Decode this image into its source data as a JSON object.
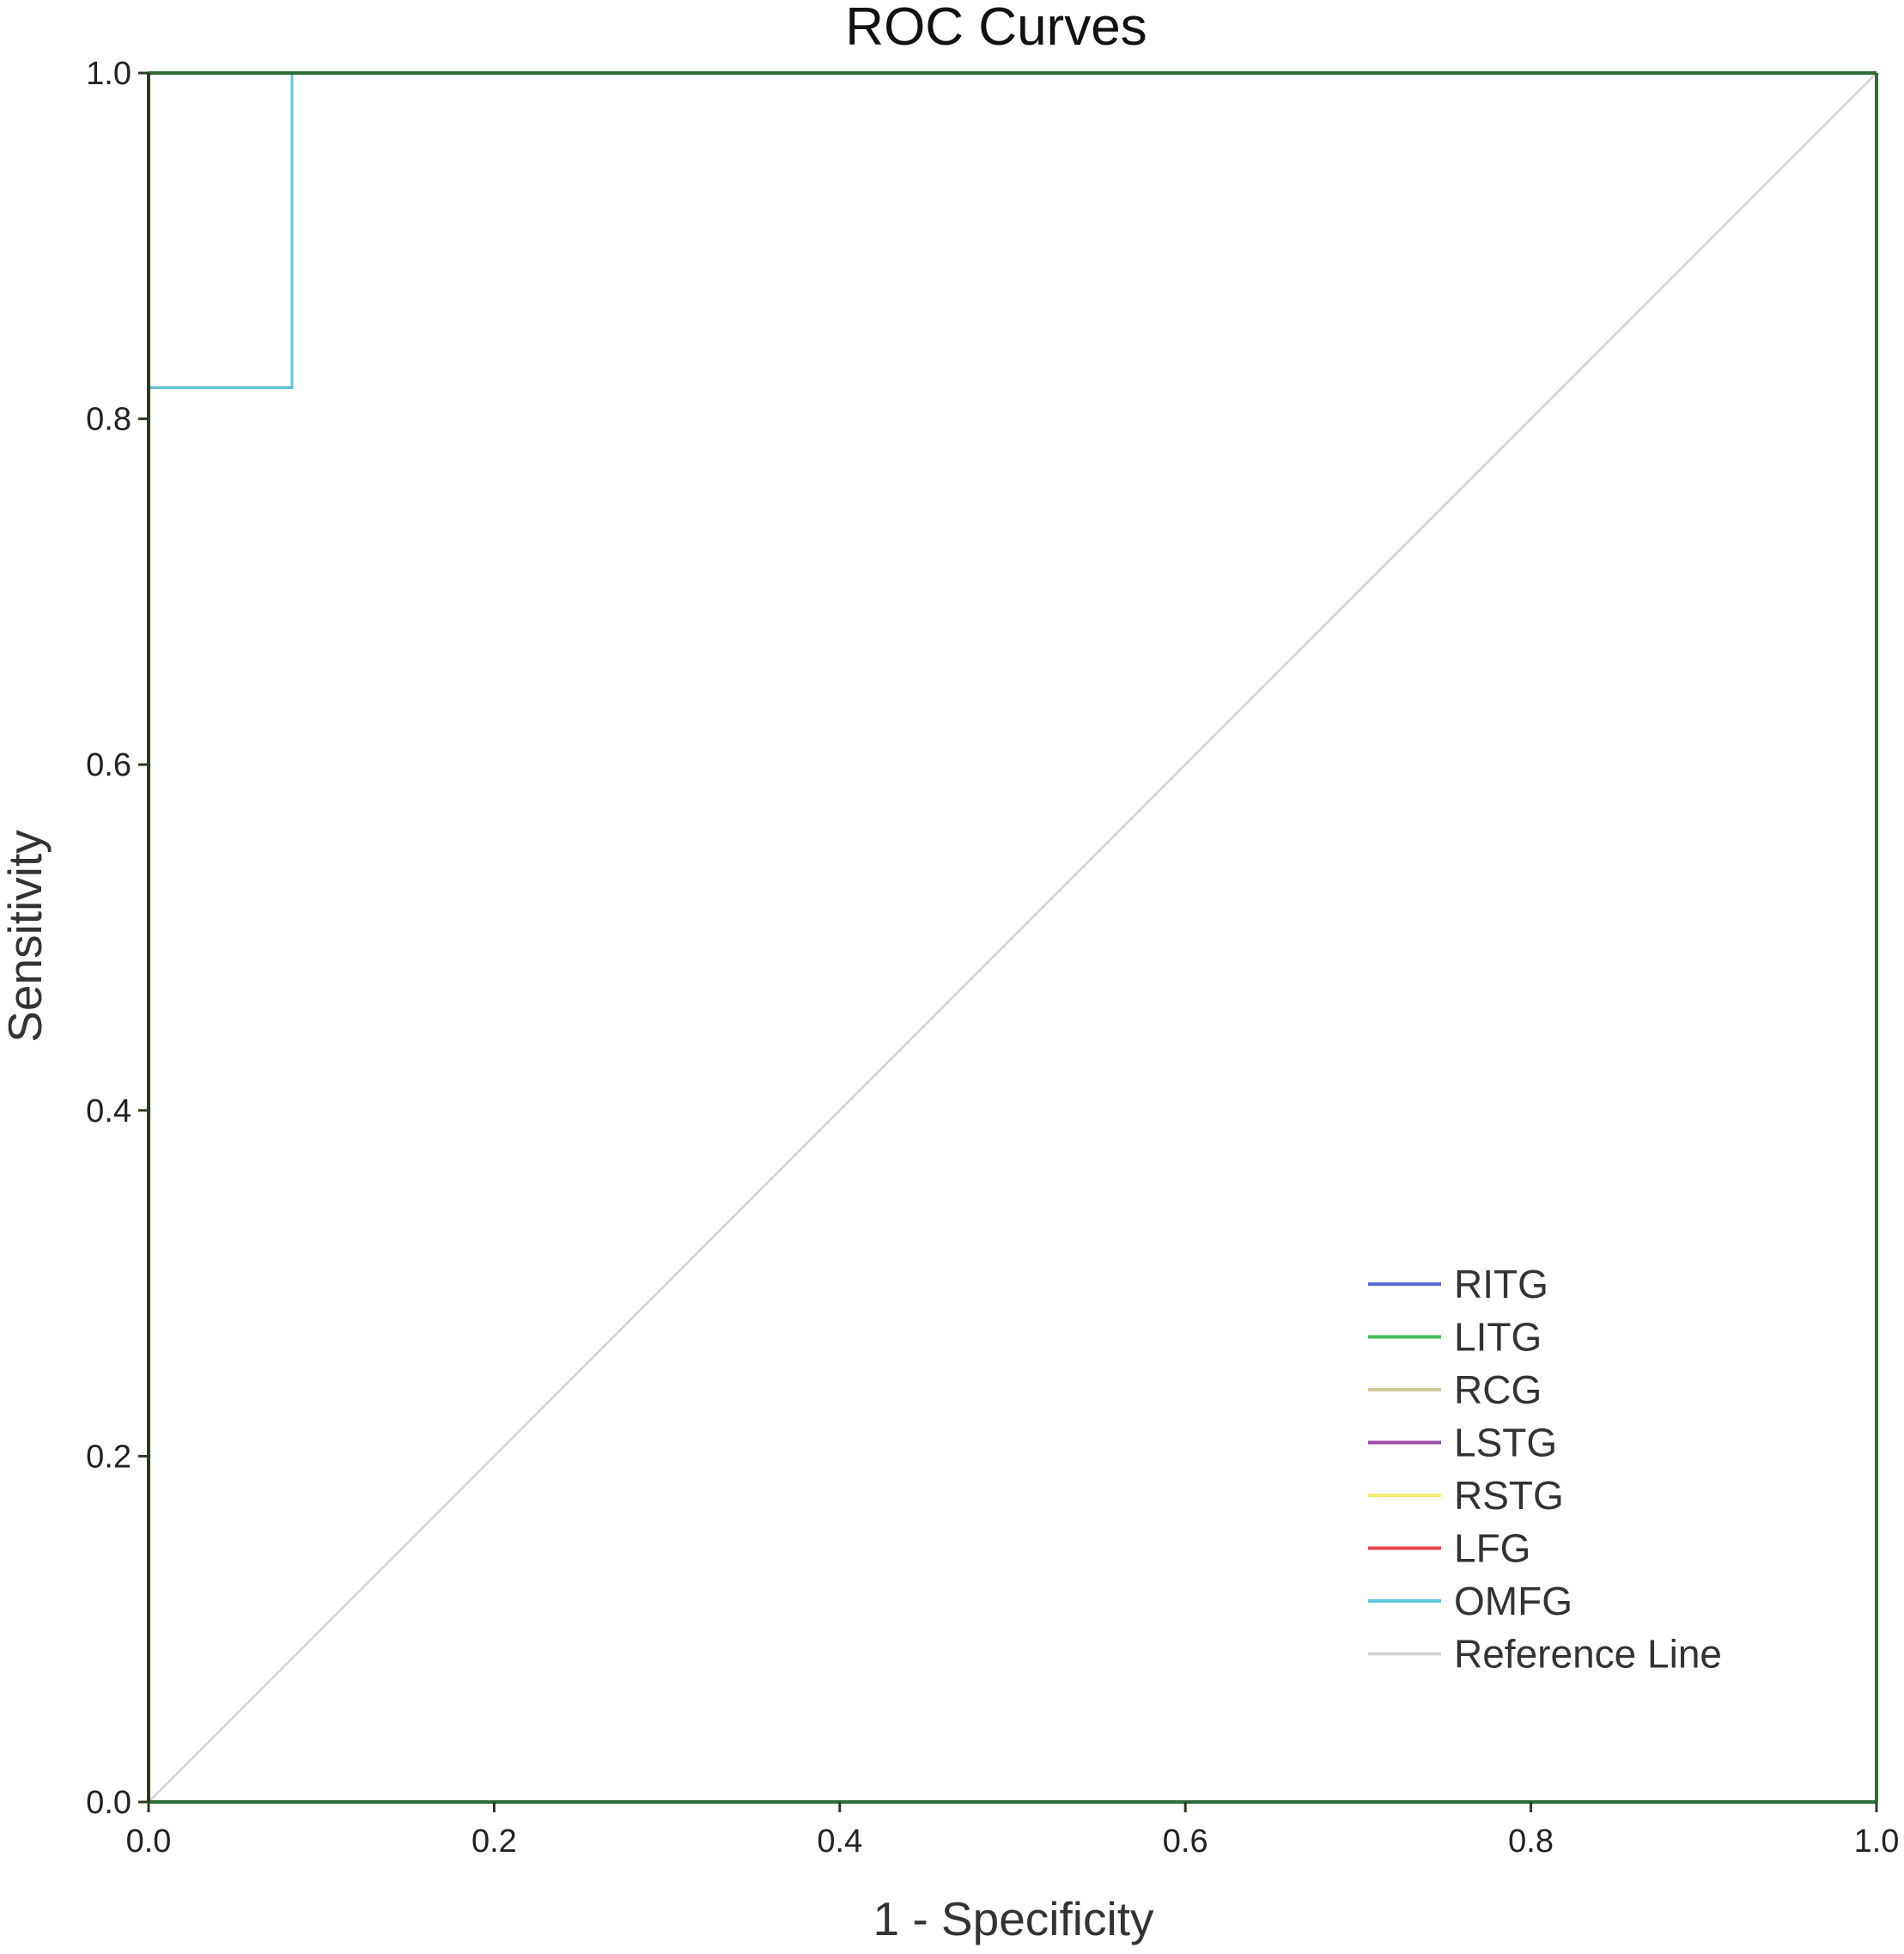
{
  "chart_data": {
    "type": "line",
    "title": "ROC Curves",
    "xlabel": "1 - Specificity",
    "ylabel": "Sensitivity",
    "xlim": [
      0,
      1
    ],
    "ylim": [
      0,
      1
    ],
    "x_ticks": [
      "0.0",
      "0.2",
      "0.4",
      "0.6",
      "0.8",
      "1.0"
    ],
    "y_ticks": [
      "0.0",
      "0.2",
      "0.4",
      "0.6",
      "0.8",
      "1.0"
    ],
    "grid": false,
    "legend_position": "bottom-right",
    "series": [
      {
        "name": "RITG",
        "color": "#5b6ed6",
        "points": [
          [
            0,
            0.818
          ],
          [
            0.083,
            0.818
          ],
          [
            0.083,
            1.0
          ],
          [
            1.0,
            1.0
          ]
        ]
      },
      {
        "name": "LITG",
        "color": "#3fbf5a",
        "points": [
          [
            0,
            0.818
          ],
          [
            0.083,
            0.818
          ],
          [
            0.083,
            1.0
          ],
          [
            1.0,
            1.0
          ]
        ]
      },
      {
        "name": "RCG",
        "color": "#d2c99b",
        "points": [
          [
            0,
            0.818
          ],
          [
            0.083,
            0.818
          ],
          [
            0.083,
            1.0
          ],
          [
            1.0,
            1.0
          ]
        ]
      },
      {
        "name": "LSTG",
        "color": "#9a4aa8",
        "points": [
          [
            0,
            0.818
          ],
          [
            0.083,
            0.818
          ],
          [
            0.083,
            1.0
          ],
          [
            1.0,
            1.0
          ]
        ]
      },
      {
        "name": "RSTG",
        "color": "#f2ec70",
        "points": [
          [
            0,
            0.818
          ],
          [
            0.083,
            0.818
          ],
          [
            0.083,
            1.0
          ],
          [
            1.0,
            1.0
          ]
        ]
      },
      {
        "name": "LFG",
        "color": "#e8454a",
        "points": [
          [
            0,
            0.818
          ],
          [
            0.083,
            0.818
          ],
          [
            0.083,
            1.0
          ],
          [
            1.0,
            1.0
          ]
        ]
      },
      {
        "name": "OMFG",
        "color": "#5cc8d8",
        "points": [
          [
            0,
            0.818
          ],
          [
            0.083,
            0.818
          ],
          [
            0.083,
            1.0
          ],
          [
            1.0,
            1.0
          ]
        ]
      },
      {
        "name": "Reference Line",
        "color": "#d3d3d3",
        "points": [
          [
            0,
            0
          ],
          [
            1,
            1
          ]
        ]
      }
    ],
    "frame_color_left": "#2d3a22",
    "frame_color": "#2e6b3a"
  }
}
